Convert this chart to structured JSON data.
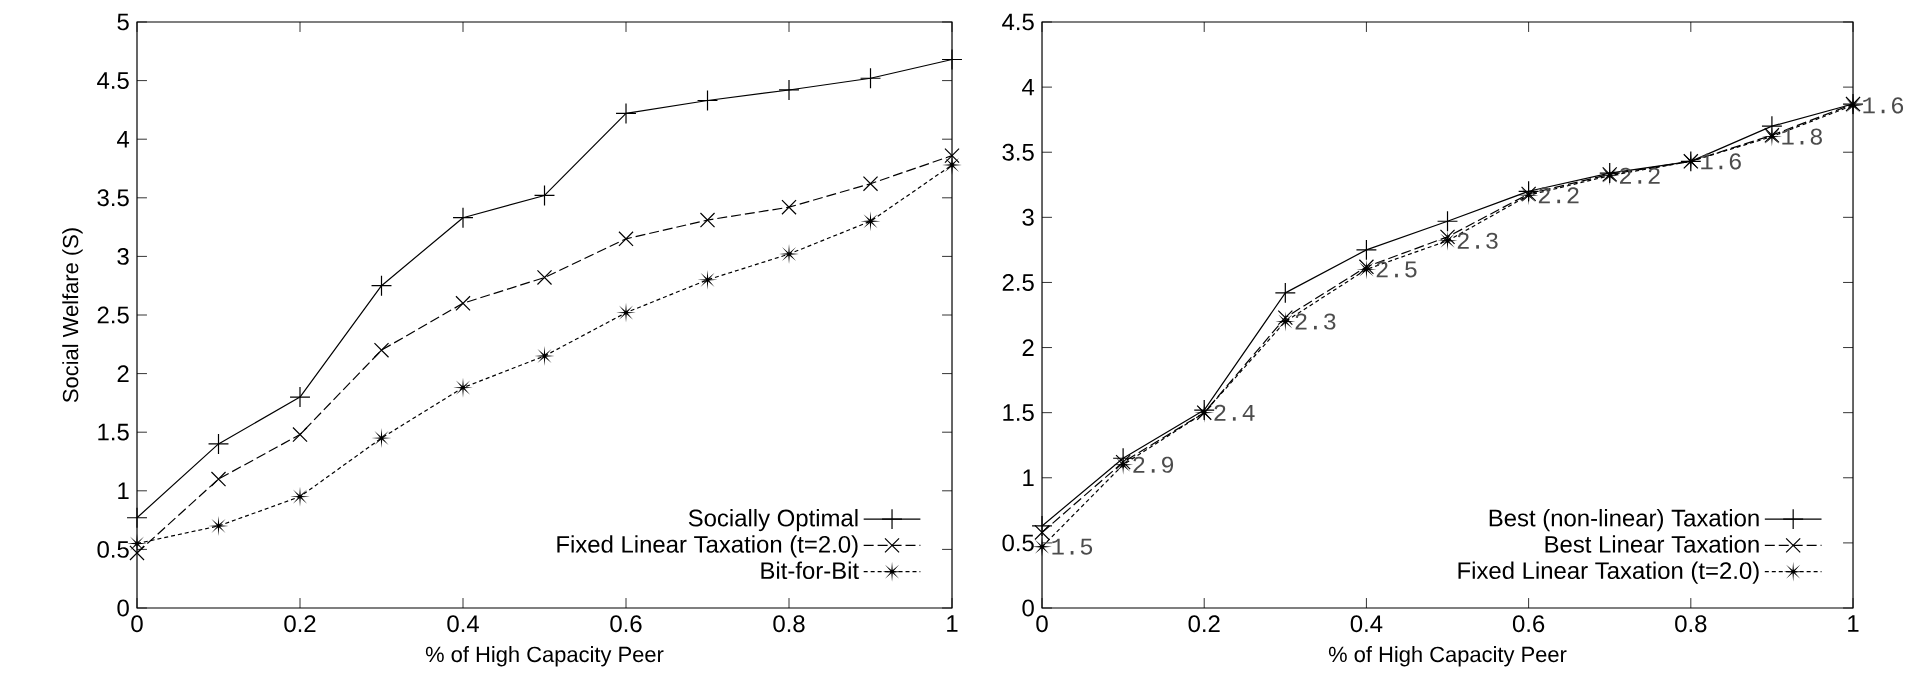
{
  "chart_data": [
    {
      "type": "line",
      "xlabel": "% of High Capacity Peer",
      "ylabel": "Social Welfare (S)",
      "x": [
        0,
        0.1,
        0.2,
        0.3,
        0.4,
        0.5,
        0.6,
        0.7,
        0.8,
        0.9,
        1
      ],
      "xlim": [
        0,
        1
      ],
      "ylim": [
        0,
        5
      ],
      "xticks": [
        0,
        0.2,
        0.4,
        0.6,
        0.8,
        1
      ],
      "yticks": [
        0,
        0.5,
        1,
        1.5,
        2,
        2.5,
        3,
        3.5,
        4,
        4.5,
        5
      ],
      "legend": "bottom right",
      "grid": false,
      "series": [
        {
          "name": "Socially Optimal",
          "color": "#000000",
          "marker": "plus",
          "line_style": "solid",
          "values": [
            0.77,
            1.4,
            1.8,
            2.75,
            3.33,
            3.52,
            4.22,
            4.33,
            4.42,
            4.52,
            4.68
          ]
        },
        {
          "name": "Fixed Linear Taxation (t=2.0)",
          "color": "#000000",
          "marker": "cross",
          "line_style": "dashed",
          "values": [
            0.47,
            1.1,
            1.48,
            2.2,
            2.6,
            2.82,
            3.15,
            3.31,
            3.42,
            3.62,
            3.86
          ]
        },
        {
          "name": "Bit-for-Bit",
          "color": "#000000",
          "marker": "star",
          "line_style": "dotted",
          "values": [
            0.55,
            0.7,
            0.95,
            1.45,
            1.88,
            2.15,
            2.52,
            2.8,
            3.02,
            3.3,
            3.78
          ]
        }
      ]
    },
    {
      "type": "line",
      "xlabel": "% of High Capacity Peer",
      "x": [
        0,
        0.1,
        0.2,
        0.3,
        0.4,
        0.5,
        0.6,
        0.7,
        0.8,
        0.9,
        1
      ],
      "xlim": [
        0,
        1
      ],
      "ylim": [
        0,
        4.5
      ],
      "xticks": [
        0,
        0.2,
        0.4,
        0.6,
        0.8,
        1
      ],
      "yticks": [
        0,
        0.5,
        1,
        1.5,
        2,
        2.5,
        3,
        3.5,
        4,
        4.5
      ],
      "legend": "bottom right",
      "grid": false,
      "series": [
        {
          "name": "Best (non-linear) Taxation",
          "color": "#000000",
          "marker": "plus",
          "line_style": "solid",
          "values": [
            0.63,
            1.15,
            1.52,
            2.42,
            2.75,
            2.97,
            3.2,
            3.34,
            3.43,
            3.7,
            3.87
          ]
        },
        {
          "name": "Best Linear Taxation",
          "color": "#000000",
          "marker": "cross",
          "line_style": "dashed",
          "values": [
            0.58,
            1.12,
            1.5,
            2.23,
            2.62,
            2.85,
            3.18,
            3.33,
            3.43,
            3.63,
            3.87
          ]
        },
        {
          "name": "Fixed Linear Taxation (t=2.0)",
          "color": "#000000",
          "marker": "star",
          "line_style": "dotted",
          "values": [
            0.47,
            1.1,
            1.5,
            2.2,
            2.6,
            2.82,
            3.17,
            3.32,
            3.43,
            3.62,
            3.86
          ]
        }
      ],
      "annotations": [
        {
          "text": "1.5",
          "x": 0,
          "y": 0.47
        },
        {
          "text": "2.9",
          "x": 0.1,
          "y": 1.1
        },
        {
          "text": "2.4",
          "x": 0.2,
          "y": 1.5
        },
        {
          "text": "2.3",
          "x": 0.3,
          "y": 2.2
        },
        {
          "text": "2.5",
          "x": 0.4,
          "y": 2.6
        },
        {
          "text": "2.3",
          "x": 0.5,
          "y": 2.82
        },
        {
          "text": "2.2",
          "x": 0.6,
          "y": 3.17
        },
        {
          "text": "2.2",
          "x": 0.7,
          "y": 3.32
        },
        {
          "text": "1.6",
          "x": 0.8,
          "y": 3.43
        },
        {
          "text": "1.8",
          "x": 0.9,
          "y": 3.62
        },
        {
          "text": "1.6",
          "x": 1,
          "y": 3.86
        }
      ]
    }
  ]
}
